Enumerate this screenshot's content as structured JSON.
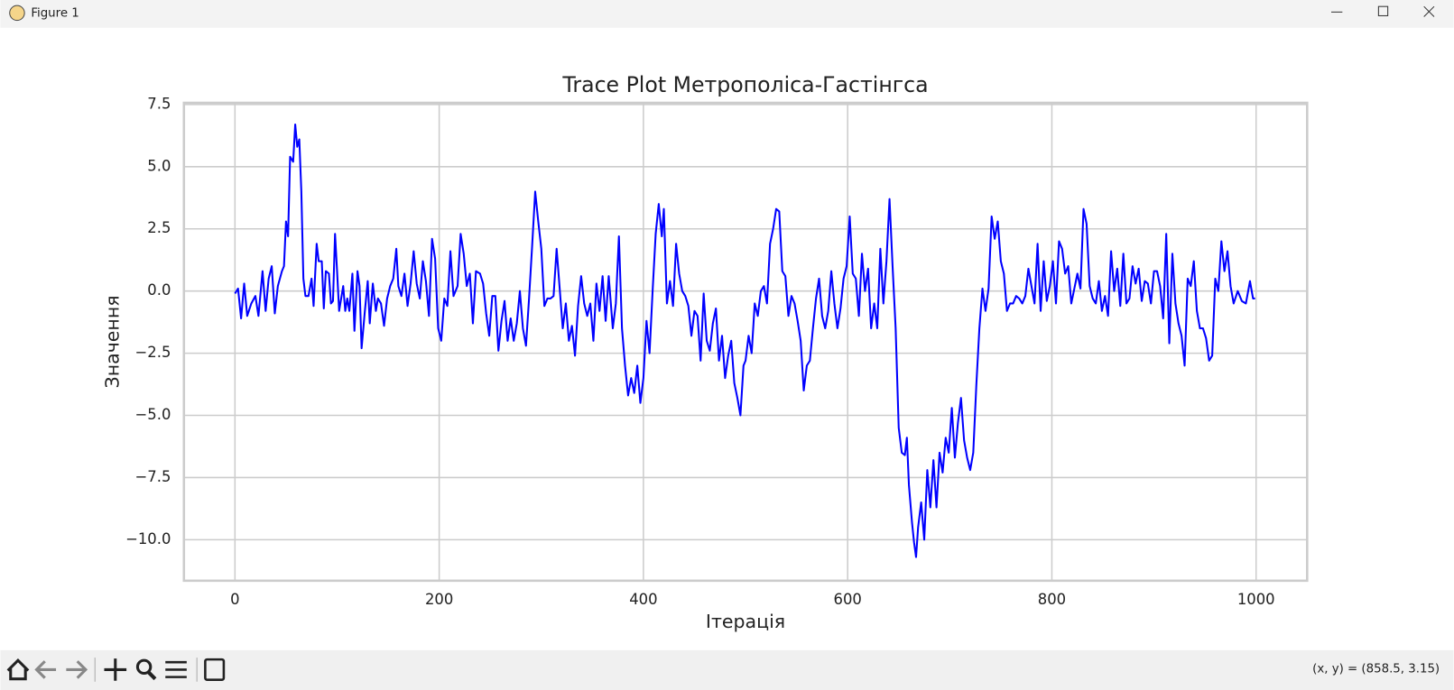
{
  "window": {
    "title": "Figure 1"
  },
  "status": "(x, y) = (858.5, 3.15)",
  "chart_data": {
    "type": "line",
    "title": "Trace Plot Метрополіса-Гастінгса",
    "x_label": "Ітерація",
    "y_label": "Значення",
    "color": "#0000ff",
    "grid": true,
    "xlim": [
      -50,
      1050
    ],
    "ylim": [
      -11.65,
      7.57
    ],
    "xticks": [
      0,
      200,
      400,
      600,
      800,
      1000
    ],
    "yticks": [
      7.5,
      {
        "value": 5,
        "label": "5.0"
      },
      {
        "value": 2.5,
        "label": "2.5"
      },
      {
        "value": 0,
        "label": "0.0"
      },
      {
        "value": -2.5,
        "label": "−2.5"
      },
      {
        "value": -5,
        "label": "−5.0"
      },
      {
        "value": -7.5,
        "label": "−7.5"
      },
      {
        "value": -10,
        "label": "−10.0"
      }
    ],
    "x": [
      0,
      3,
      6,
      9,
      12,
      16,
      20,
      23,
      27,
      30,
      33,
      36,
      39,
      42,
      46,
      48,
      50,
      52,
      54,
      57,
      59,
      61,
      63,
      65,
      67,
      69,
      72,
      75,
      77,
      80,
      82,
      85,
      87,
      89,
      92,
      94,
      96,
      98,
      100,
      102,
      104,
      106,
      108,
      110,
      112,
      115,
      117,
      120,
      122,
      124,
      127,
      130,
      132,
      135,
      138,
      140,
      143,
      146,
      149,
      152,
      155,
      158,
      160,
      163,
      166,
      169,
      172,
      175,
      178,
      181,
      184,
      187,
      190,
      193,
      196,
      199,
      202,
      205,
      208,
      211,
      214,
      218,
      221,
      224,
      227,
      230,
      233,
      236,
      240,
      243,
      246,
      249,
      252,
      255,
      258,
      261,
      264,
      267,
      270,
      273,
      276,
      279,
      282,
      285,
      288,
      291,
      294,
      297,
      300,
      303,
      306,
      309,
      312,
      315,
      318,
      321,
      324,
      327,
      330,
      333,
      336,
      339,
      342,
      345,
      348,
      351,
      354,
      357,
      360,
      363,
      366,
      370,
      373,
      376,
      379,
      382,
      385,
      388,
      391,
      394,
      397,
      400,
      403,
      406,
      409,
      412,
      415,
      418,
      420,
      423,
      426,
      429,
      432,
      435,
      438,
      441,
      444,
      447,
      450,
      453,
      456,
      459,
      462,
      465,
      468,
      471,
      474,
      477,
      480,
      483,
      486,
      489,
      492,
      495,
      498,
      500,
      503,
      506,
      509,
      512,
      515,
      518,
      521,
      524,
      527,
      530,
      533,
      536,
      539,
      542,
      545,
      548,
      551,
      554,
      557,
      560,
      563,
      566,
      569,
      572,
      575,
      578,
      581,
      584,
      587,
      590,
      593,
      596,
      599,
      602,
      605,
      608,
      611,
      614,
      617,
      620,
      623,
      626,
      629,
      632,
      635,
      638,
      641,
      644,
      647,
      650,
      653,
      656,
      658,
      660,
      663,
      665,
      667,
      669,
      672,
      675,
      678,
      681,
      684,
      687,
      690,
      693,
      696,
      699,
      702,
      705,
      708,
      711,
      714,
      717,
      720,
      723,
      726,
      729,
      732,
      735,
      738,
      741,
      744,
      747,
      750,
      753,
      756,
      759,
      762,
      765,
      768,
      771,
      774,
      777,
      780,
      783,
      786,
      789,
      792,
      795,
      798,
      801,
      804,
      807,
      810,
      813,
      816,
      819,
      822,
      825,
      828,
      831,
      834,
      837,
      840,
      843,
      846,
      849,
      852,
      855,
      858,
      861,
      864,
      867,
      870,
      873,
      876,
      879,
      882,
      885,
      888,
      891,
      894,
      897,
      900,
      903,
      906,
      909,
      912,
      915,
      918,
      921,
      924,
      927,
      930,
      933,
      936,
      939,
      942,
      945,
      948,
      951,
      954,
      957,
      960,
      963,
      966,
      969,
      972,
      975,
      978,
      982,
      986,
      990,
      994,
      997,
      999
    ],
    "values": [
      -0.1,
      0.1,
      -1.1,
      0.3,
      -1.0,
      -0.5,
      -0.2,
      -1.0,
      0.8,
      -0.8,
      0.5,
      1.0,
      -0.9,
      0.2,
      0.8,
      1.0,
      2.8,
      2.2,
      5.4,
      5.2,
      6.7,
      5.8,
      6.1,
      4.0,
      0.5,
      -0.2,
      -0.2,
      0.5,
      -0.6,
      1.9,
      1.2,
      1.2,
      -0.7,
      0.8,
      0.7,
      -0.5,
      -0.4,
      2.3,
      0.8,
      -0.8,
      -0.3,
      0.2,
      -0.8,
      -0.3,
      -0.8,
      0.7,
      -1.6,
      0.8,
      0.2,
      -2.3,
      -0.9,
      0.4,
      -1.3,
      0.3,
      -0.8,
      -0.3,
      -0.5,
      -1.4,
      -0.3,
      0.2,
      0.5,
      1.7,
      0.2,
      -0.2,
      0.7,
      -0.6,
      0.3,
      1.6,
      0.3,
      -0.3,
      1.2,
      0.4,
      -1.0,
      2.1,
      1.3,
      -1.5,
      -2.0,
      -0.3,
      -0.6,
      1.6,
      -0.2,
      0.2,
      2.3,
      1.5,
      0.2,
      0.7,
      -1.3,
      0.8,
      0.7,
      0.3,
      -0.9,
      -1.8,
      -0.2,
      -0.2,
      -2.4,
      -1.2,
      -0.4,
      -2.0,
      -1.1,
      -2.0,
      -1.3,
      0.0,
      -1.5,
      -2.2,
      -0.3,
      1.8,
      4.0,
      2.8,
      1.7,
      -0.6,
      -0.3,
      -0.3,
      -0.2,
      1.7,
      0.1,
      -1.5,
      -0.5,
      -2.0,
      -1.4,
      -2.6,
      -0.6,
      0.6,
      -0.5,
      -1.0,
      -0.5,
      -2.0,
      0.3,
      -0.8,
      0.6,
      -1.2,
      0.6,
      -1.5,
      -0.5,
      2.2,
      -1.5,
      -3.0,
      -4.2,
      -3.5,
      -4.1,
      -3.0,
      -4.5,
      -3.5,
      -1.2,
      -2.5,
      0.0,
      2.3,
      3.5,
      2.2,
      3.3,
      -0.5,
      0.4,
      -0.6,
      1.9,
      0.7,
      0.0,
      -0.2,
      -0.6,
      -1.8,
      -0.8,
      -1.0,
      -2.8,
      -0.1,
      -2.0,
      -2.4,
      -1.3,
      -0.7,
      -2.8,
      -1.8,
      -3.5,
      -2.6,
      -2.0,
      -3.7,
      -4.3,
      -5.0,
      -3.0,
      -2.8,
      -1.8,
      -2.5,
      -0.5,
      -1.0,
      0.0,
      0.2,
      -0.5,
      1.9,
      2.5,
      3.3,
      3.2,
      0.8,
      0.6,
      -1.0,
      -0.2,
      -0.5,
      -1.2,
      -2.0,
      -4.0,
      -3.0,
      -2.8,
      -1.5,
      -0.3,
      0.5,
      -1.0,
      -1.5,
      -0.8,
      0.8,
      -0.5,
      -1.5,
      -0.7,
      0.5,
      1.0,
      3.0,
      0.7,
      0.5,
      -1.0,
      1.5,
      0.0,
      0.9,
      -1.5,
      -0.5,
      -1.5,
      1.7,
      -0.5,
      1.2,
      3.7,
      1.0,
      -1.5,
      -5.5,
      -6.5,
      -6.6,
      -5.9,
      -7.8,
      -9.3,
      -10.1,
      -10.7,
      -9.5,
      -8.5,
      -10.0,
      -7.2,
      -8.7,
      -6.8,
      -8.7,
      -6.5,
      -7.3,
      -5.9,
      -6.5,
      -4.7,
      -6.7,
      -5.3,
      -4.3,
      -6.0,
      -6.7,
      -7.2,
      -6.5,
      -3.8,
      -1.5,
      0.1,
      -0.8,
      0.1,
      3.0,
      2.1,
      2.8,
      1.2,
      0.7,
      -0.8,
      -0.5,
      -0.5,
      -0.2,
      -0.3,
      -0.5,
      -0.2,
      0.9,
      0.2,
      -0.5,
      1.9,
      -0.8,
      1.2,
      -0.4,
      0.2,
      1.2,
      -0.5,
      2.0,
      1.7,
      0.7,
      1.0,
      -0.5,
      0.1,
      0.7,
      0.1,
      3.3,
      2.7,
      0.2,
      -0.3,
      -0.5,
      0.4,
      -0.8,
      -0.2,
      -1.0,
      1.6,
      0.0,
      0.9,
      -0.6,
      1.5,
      -0.5,
      -0.3,
      1.0,
      0.3,
      0.9,
      -0.4,
      0.4,
      0.3,
      -0.5,
      0.8,
      0.8,
      0.2,
      -1.1,
      2.3,
      -2.1,
      1.5,
      -0.5,
      -1.3,
      -1.8,
      -3.0,
      0.5,
      0.2,
      1.2,
      -0.8,
      -1.5,
      -1.5,
      -1.9,
      -2.8,
      -2.6,
      0.5,
      0.0,
      2.0,
      0.8,
      1.6,
      0.2,
      -0.5,
      0.0,
      -0.4,
      -0.5,
      0.4,
      -0.3,
      -0.3
    ]
  }
}
